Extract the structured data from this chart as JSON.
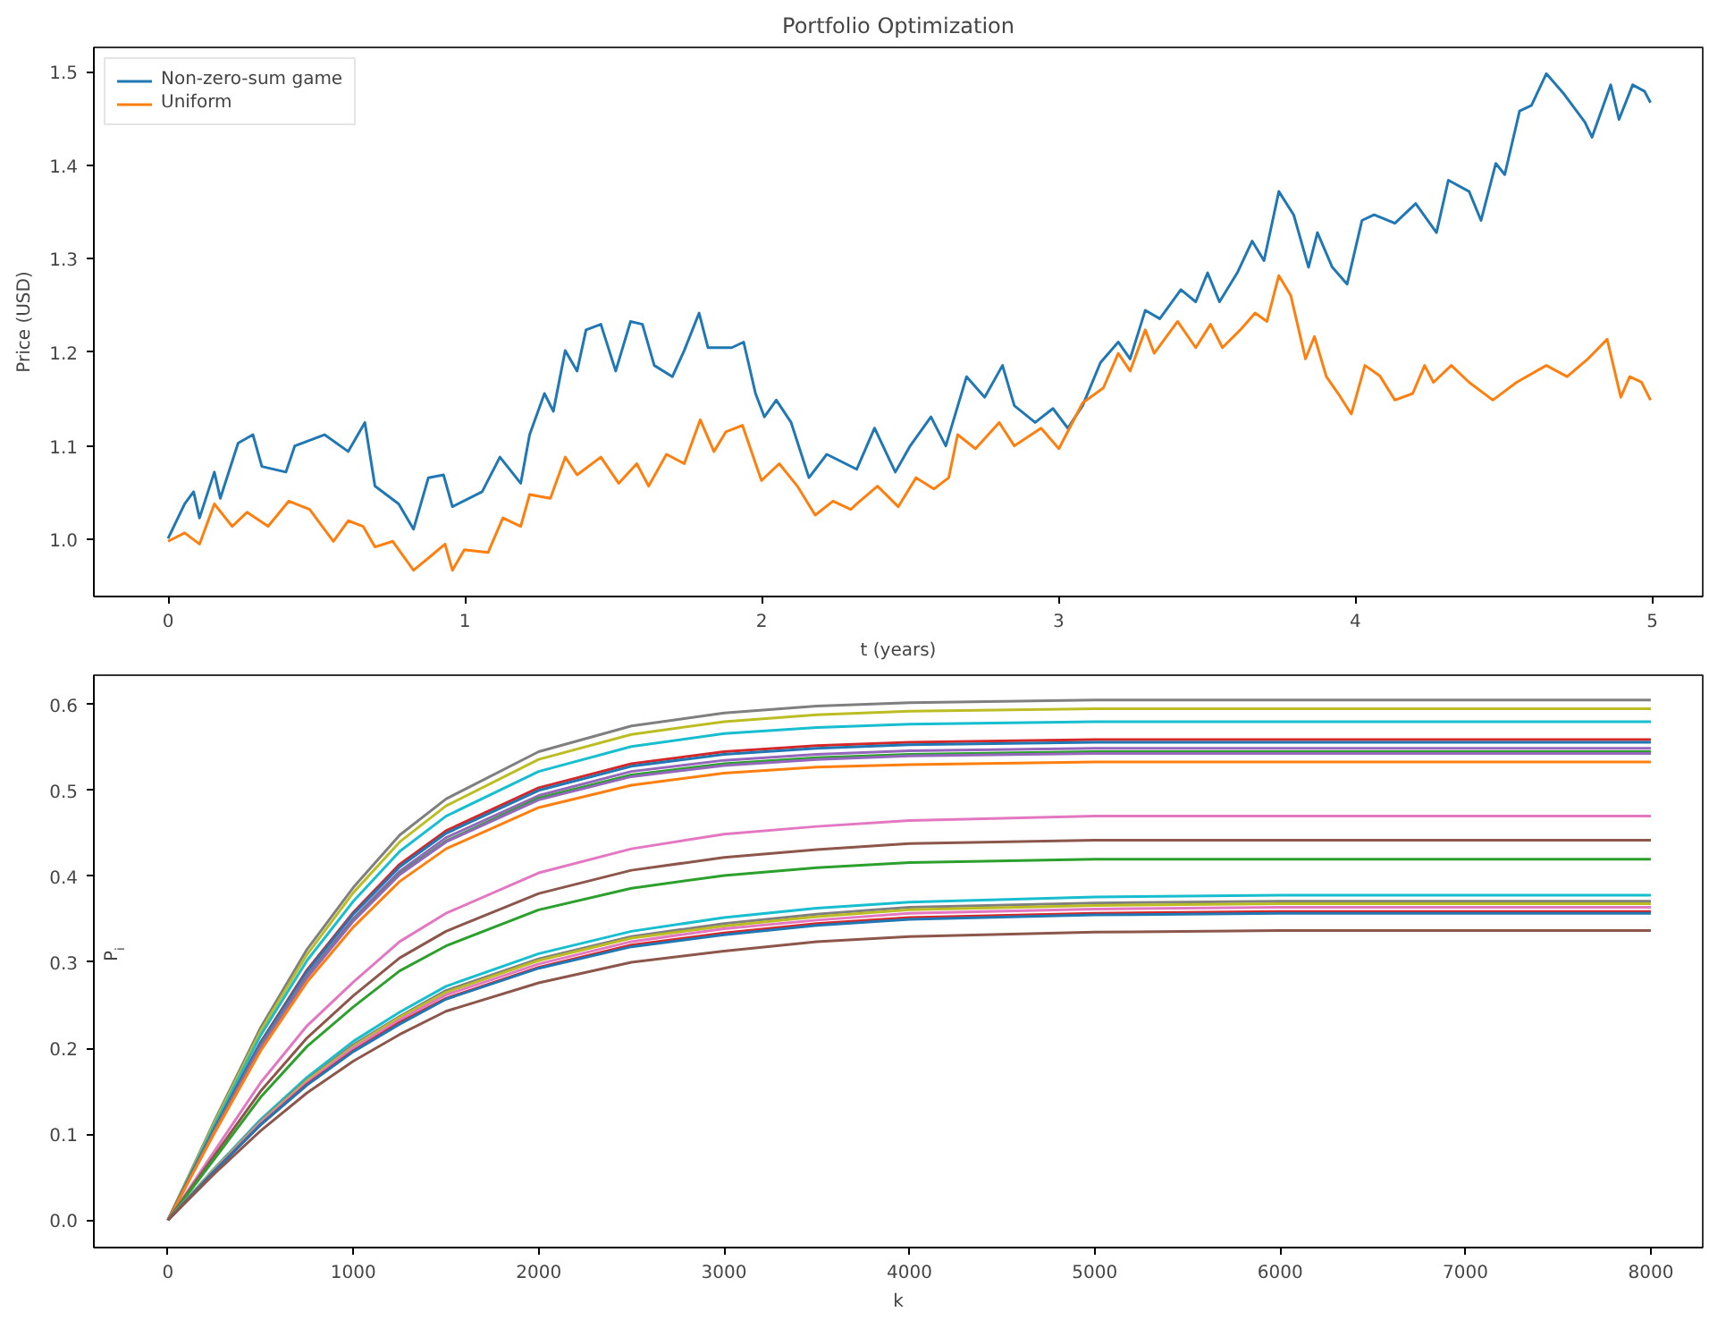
{
  "chart_data": [
    {
      "type": "line",
      "title": "Portfolio Optimization",
      "xlabel": "t (years)",
      "ylabel": "Price (USD)",
      "xlim": [
        -0.25,
        5.17
      ],
      "ylim": [
        0.939,
        1.526
      ],
      "xticks": [
        0,
        1,
        2,
        3,
        4,
        5
      ],
      "yticks": [
        {
          "value": 1.0,
          "label": "1.0"
        },
        {
          "value": 1.1,
          "label": "1.1"
        },
        {
          "value": 1.2,
          "label": "1.2"
        },
        {
          "value": 1.3,
          "label": "1.3"
        },
        {
          "value": 1.4,
          "label": "1.4"
        },
        {
          "value": 1.5,
          "label": "1.5"
        }
      ],
      "grid": false,
      "legend": "top left",
      "line_style": "solid",
      "marker": "none",
      "series": [
        {
          "name": "Non-zero-sum game",
          "color": "#1f77b4",
          "x": [
            0,
            0.056,
            0.086,
            0.106,
            0.156,
            0.176,
            0.236,
            0.286,
            0.316,
            0.397,
            0.427,
            0.527,
            0.607,
            0.663,
            0.697,
            0.777,
            0.827,
            0.877,
            0.928,
            0.958,
            1.058,
            1.118,
            1.188,
            1.218,
            1.268,
            1.298,
            1.338,
            1.378,
            1.408,
            1.458,
            1.508,
            1.558,
            1.598,
            1.638,
            1.699,
            1.739,
            1.789,
            1.819,
            1.899,
            1.939,
            1.979,
            2.009,
            2.049,
            2.099,
            2.159,
            2.219,
            2.32,
            2.38,
            2.45,
            2.5,
            2.57,
            2.62,
            2.69,
            2.751,
            2.811,
            2.851,
            2.921,
            2.981,
            3.031,
            3.081,
            3.141,
            3.201,
            3.241,
            3.292,
            3.341,
            3.412,
            3.462,
            3.502,
            3.542,
            3.602,
            3.652,
            3.692,
            3.742,
            3.792,
            3.842,
            3.872,
            3.922,
            3.972,
            4.022,
            4.063,
            4.133,
            4.203,
            4.273,
            4.313,
            4.383,
            4.423,
            4.473,
            4.503,
            4.553,
            4.593,
            4.643,
            4.703,
            4.773,
            4.797,
            4.86,
            4.888,
            4.934,
            4.974,
            4.994
          ],
          "values": [
            1.001,
            1.038,
            1.051,
            1.023,
            1.072,
            1.044,
            1.103,
            1.112,
            1.078,
            1.072,
            1.1,
            1.112,
            1.094,
            1.125,
            1.057,
            1.038,
            1.011,
            1.066,
            1.069,
            1.035,
            1.051,
            1.088,
            1.06,
            1.112,
            1.156,
            1.137,
            1.202,
            1.18,
            1.224,
            1.23,
            1.18,
            1.233,
            1.23,
            1.186,
            1.174,
            1.202,
            1.242,
            1.205,
            1.205,
            1.211,
            1.156,
            1.131,
            1.149,
            1.125,
            1.066,
            1.091,
            1.075,
            1.119,
            1.072,
            1.1,
            1.131,
            1.1,
            1.174,
            1.152,
            1.186,
            1.143,
            1.125,
            1.14,
            1.119,
            1.143,
            1.189,
            1.211,
            1.193,
            1.245,
            1.236,
            1.267,
            1.254,
            1.285,
            1.254,
            1.285,
            1.319,
            1.298,
            1.372,
            1.347,
            1.291,
            1.328,
            1.291,
            1.273,
            1.341,
            1.347,
            1.338,
            1.359,
            1.328,
            1.384,
            1.372,
            1.341,
            1.402,
            1.39,
            1.458,
            1.464,
            1.498,
            1.476,
            1.446,
            1.43,
            1.486,
            1.449,
            1.486,
            1.479,
            1.467
          ]
        },
        {
          "name": "Uniform",
          "color": "#ff7f0e",
          "x": [
            0,
            0.056,
            0.106,
            0.156,
            0.216,
            0.266,
            0.337,
            0.407,
            0.477,
            0.557,
            0.607,
            0.657,
            0.697,
            0.757,
            0.827,
            0.888,
            0.933,
            0.958,
            0.998,
            1.078,
            1.128,
            1.188,
            1.218,
            1.288,
            1.338,
            1.378,
            1.458,
            1.518,
            1.579,
            1.619,
            1.679,
            1.739,
            1.793,
            1.839,
            1.879,
            1.935,
            1.999,
            2.059,
            2.12,
            2.18,
            2.24,
            2.3,
            2.32,
            2.39,
            2.46,
            2.52,
            2.58,
            2.63,
            2.66,
            2.72,
            2.8,
            2.851,
            2.941,
            3.001,
            3.081,
            3.151,
            3.201,
            3.241,
            3.292,
            3.322,
            3.401,
            3.462,
            3.512,
            3.552,
            3.612,
            3.662,
            3.702,
            3.742,
            3.782,
            3.832,
            3.862,
            3.902,
            3.942,
            3.986,
            4.032,
            4.082,
            4.133,
            4.193,
            4.233,
            4.263,
            4.323,
            4.383,
            4.463,
            4.543,
            4.643,
            4.713,
            4.783,
            4.848,
            4.894,
            4.924,
            4.964,
            4.994
          ],
          "values": [
            0.998,
            1.007,
            0.995,
            1.038,
            1.014,
            1.029,
            1.014,
            1.041,
            1.032,
            0.998,
            1.02,
            1.014,
            0.992,
            0.998,
            0.967,
            0.983,
            0.995,
            0.967,
            0.989,
            0.986,
            1.023,
            1.014,
            1.048,
            1.044,
            1.088,
            1.069,
            1.088,
            1.06,
            1.081,
            1.057,
            1.091,
            1.081,
            1.128,
            1.094,
            1.115,
            1.122,
            1.063,
            1.081,
            1.057,
            1.026,
            1.041,
            1.032,
            1.038,
            1.057,
            1.035,
            1.066,
            1.054,
            1.066,
            1.112,
            1.097,
            1.125,
            1.1,
            1.119,
            1.097,
            1.146,
            1.162,
            1.199,
            1.18,
            1.224,
            1.199,
            1.233,
            1.205,
            1.23,
            1.205,
            1.224,
            1.242,
            1.233,
            1.282,
            1.261,
            1.193,
            1.217,
            1.174,
            1.156,
            1.134,
            1.186,
            1.175,
            1.149,
            1.156,
            1.186,
            1.168,
            1.186,
            1.168,
            1.149,
            1.168,
            1.186,
            1.174,
            1.193,
            1.214,
            1.152,
            1.174,
            1.168,
            1.149
          ]
        }
      ]
    },
    {
      "type": "line",
      "xlabel": "k",
      "ylabel": "P$_{i}$",
      "xlim": [
        -400,
        8280
      ],
      "ylim": [
        -0.032,
        0.634
      ],
      "xticks": [
        0,
        1000,
        2000,
        3000,
        4000,
        5000,
        6000,
        7000,
        8000
      ],
      "yticks": [
        {
          "value": 0.0,
          "label": "0.0"
        },
        {
          "value": 0.1,
          "label": "0.1"
        },
        {
          "value": 0.2,
          "label": "0.2"
        },
        {
          "value": 0.3,
          "label": "0.3"
        },
        {
          "value": 0.4,
          "label": "0.4"
        },
        {
          "value": 0.5,
          "label": "0.5"
        },
        {
          "value": 0.6,
          "label": "0.6"
        }
      ],
      "grid": false,
      "legend": false,
      "line_style": "solid",
      "marker": "none",
      "x": [
        0,
        250,
        500,
        750,
        1000,
        1250,
        1500,
        2000,
        2500,
        3000,
        3500,
        4000,
        5000,
        6000,
        8000
      ],
      "series": [
        {
          "color": "#7f7f7f",
          "values": [
            0,
            0.115,
            0.224,
            0.315,
            0.387,
            0.448,
            0.49,
            0.545,
            0.575,
            0.59,
            0.598,
            0.602,
            0.605,
            0.605,
            0.605
          ]
        },
        {
          "color": "#bcbd22",
          "values": [
            0,
            0.113,
            0.22,
            0.309,
            0.381,
            0.44,
            0.482,
            0.536,
            0.565,
            0.58,
            0.588,
            0.592,
            0.595,
            0.595,
            0.595
          ]
        },
        {
          "color": "#17becf",
          "values": [
            0,
            0.11,
            0.215,
            0.302,
            0.371,
            0.429,
            0.47,
            0.522,
            0.551,
            0.566,
            0.573,
            0.577,
            0.58,
            0.58,
            0.58
          ]
        },
        {
          "color": "#d62728",
          "values": [
            0,
            0.106,
            0.207,
            0.291,
            0.358,
            0.414,
            0.453,
            0.503,
            0.531,
            0.545,
            0.552,
            0.556,
            0.559,
            0.559,
            0.559
          ]
        },
        {
          "color": "#1f77b4",
          "values": [
            0,
            0.106,
            0.206,
            0.289,
            0.356,
            0.411,
            0.45,
            0.5,
            0.528,
            0.542,
            0.549,
            0.553,
            0.556,
            0.556,
            0.556
          ]
        },
        {
          "color": "#9467bd",
          "values": [
            0,
            0.104,
            0.203,
            0.285,
            0.351,
            0.406,
            0.445,
            0.494,
            0.522,
            0.535,
            0.542,
            0.546,
            0.549,
            0.549,
            0.549
          ]
        },
        {
          "color": "#2ca02c",
          "values": [
            0,
            0.104,
            0.202,
            0.283,
            0.349,
            0.403,
            0.441,
            0.491,
            0.518,
            0.531,
            0.538,
            0.542,
            0.545,
            0.545,
            0.545
          ]
        },
        {
          "color": "#9467bd",
          "values": [
            0,
            0.103,
            0.201,
            0.282,
            0.348,
            0.402,
            0.44,
            0.489,
            0.516,
            0.529,
            0.536,
            0.54,
            0.543,
            0.543,
            0.543
          ]
        },
        {
          "color": "#ff7f0e",
          "values": [
            0,
            0.101,
            0.197,
            0.277,
            0.341,
            0.394,
            0.432,
            0.48,
            0.506,
            0.52,
            0.527,
            0.53,
            0.533,
            0.533,
            0.533
          ]
        },
        {
          "color": "#e377c2",
          "values": [
            0,
            0.08,
            0.16,
            0.226,
            0.277,
            0.324,
            0.357,
            0.404,
            0.432,
            0.449,
            0.458,
            0.465,
            0.47,
            0.47,
            0.47
          ]
        },
        {
          "color": "#8c564b",
          "values": [
            0,
            0.075,
            0.15,
            0.212,
            0.261,
            0.305,
            0.336,
            0.38,
            0.407,
            0.422,
            0.431,
            0.438,
            0.442,
            0.442,
            0.442
          ]
        },
        {
          "color": "#2ca02c",
          "values": [
            0,
            0.071,
            0.143,
            0.202,
            0.248,
            0.29,
            0.319,
            0.361,
            0.386,
            0.401,
            0.41,
            0.416,
            0.42,
            0.42,
            0.42
          ]
        },
        {
          "color": "#17becf",
          "values": [
            0,
            0.06,
            0.117,
            0.166,
            0.208,
            0.242,
            0.272,
            0.31,
            0.336,
            0.352,
            0.363,
            0.37,
            0.376,
            0.378,
            0.378
          ]
        },
        {
          "color": "#7f7f7f",
          "values": [
            0,
            0.059,
            0.115,
            0.163,
            0.204,
            0.237,
            0.267,
            0.304,
            0.33,
            0.345,
            0.356,
            0.364,
            0.369,
            0.371,
            0.371
          ]
        },
        {
          "color": "#bcbd22",
          "values": [
            0,
            0.059,
            0.114,
            0.162,
            0.202,
            0.236,
            0.265,
            0.302,
            0.328,
            0.342,
            0.353,
            0.361,
            0.366,
            0.368,
            0.368
          ]
        },
        {
          "color": "#e377c2",
          "values": [
            0,
            0.058,
            0.113,
            0.16,
            0.2,
            0.233,
            0.262,
            0.298,
            0.324,
            0.339,
            0.349,
            0.357,
            0.362,
            0.364,
            0.364
          ]
        },
        {
          "color": "#d62728",
          "values": [
            0,
            0.057,
            0.111,
            0.158,
            0.197,
            0.23,
            0.258,
            0.294,
            0.32,
            0.334,
            0.345,
            0.352,
            0.357,
            0.359,
            0.359
          ]
        },
        {
          "color": "#1f77b4",
          "values": [
            0,
            0.057,
            0.111,
            0.157,
            0.196,
            0.228,
            0.257,
            0.293,
            0.318,
            0.332,
            0.343,
            0.35,
            0.355,
            0.357,
            0.357
          ]
        },
        {
          "color": "#8c564b",
          "values": [
            0,
            0.054,
            0.104,
            0.148,
            0.185,
            0.216,
            0.243,
            0.276,
            0.3,
            0.313,
            0.324,
            0.33,
            0.335,
            0.337,
            0.337
          ]
        }
      ]
    }
  ]
}
